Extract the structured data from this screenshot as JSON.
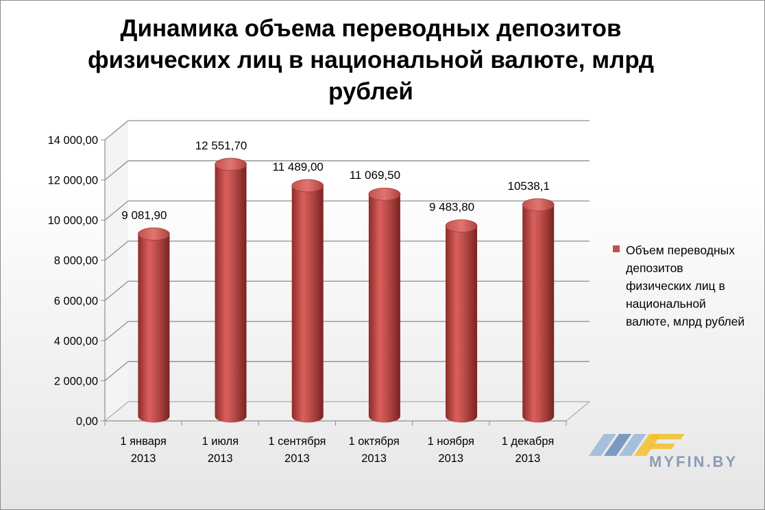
{
  "chart_data": {
    "type": "bar",
    "title_lines": [
      "Динамика объема переводных депозитов",
      "физических лиц в национальной валюте, млрд",
      "рублей"
    ],
    "categories": [
      [
        "1 января",
        "2013"
      ],
      [
        "1 июля",
        "2013"
      ],
      [
        "1 сентября",
        "2013"
      ],
      [
        "1 октября",
        "2013"
      ],
      [
        "1 ноября",
        "2013"
      ],
      [
        "1 декабря",
        "2013"
      ]
    ],
    "series": [
      {
        "name": "Объем переводных депозитов физических лиц в национальной валюте, млрд рублей",
        "values": [
          9081.9,
          12551.7,
          11489.0,
          11069.5,
          9483.8,
          10538.1
        ],
        "data_labels": [
          "9 081,90",
          "12 551,70",
          "11 489,00",
          "11 069,50",
          "9 483,80",
          "10538,1"
        ],
        "color": "#c0504d"
      }
    ],
    "y_ticks": [
      "0,00",
      "2 000,00",
      "4 000,00",
      "6 000,00",
      "8 000,00",
      "10 000,00",
      "12 000,00",
      "14 000,00"
    ],
    "ylim": [
      0,
      14000
    ],
    "grid": true,
    "legend_position": "right",
    "style": "3d-cylinder"
  },
  "legend_lines": [
    "Объем переводных",
    "депозитов",
    "физических лиц в",
    "национальной",
    "валюте, млрд рублей"
  ],
  "watermark": {
    "text": "MYFIN.BY",
    "colors": {
      "blue": "#5f86b5",
      "yellow": "#f2c12e",
      "text": "#8a9cb5"
    }
  }
}
